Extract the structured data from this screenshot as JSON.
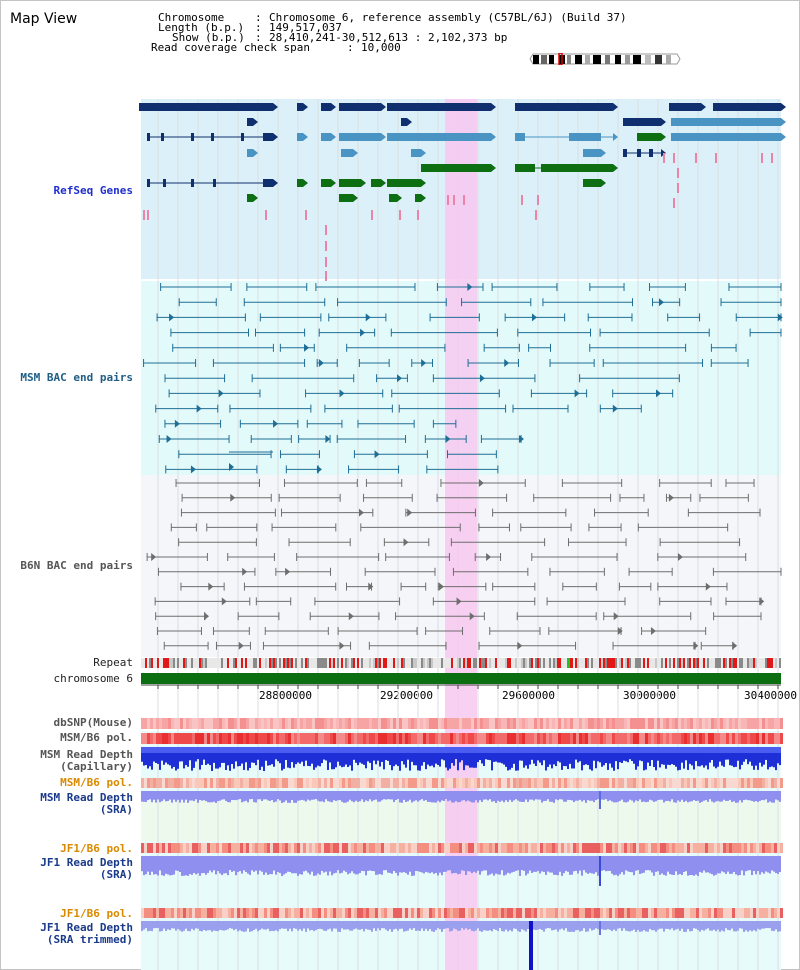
{
  "view": {
    "title": "Map View"
  },
  "header": {
    "chromosome_label": "Chromosome",
    "chromosome_value": "Chromosome 6, reference assembly (C57BL/6J) (Build 37)",
    "length_label": "Length (b.p.)",
    "length_value": "149,517,037",
    "show_label": "Show (b.p.)",
    "show_value": "28,410,241-30,512,613 : 2,102,373 bp",
    "coverage_label": "Read coverage check span",
    "coverage_value": "10,000"
  },
  "tracks": {
    "refseq": "RefSeq Genes",
    "msm_bac": "MSM BAC end pairs",
    "b6n_bac": "B6N BAC end pairs",
    "repeat": "Repeat",
    "chromosome": "chromosome 6",
    "dbsnp": "dbSNP(Mouse)",
    "msm_b6_pol_1": "MSM/B6 pol.",
    "msm_read_depth_cap": "MSM Read Depth\n(Capillary)",
    "msm_b6_pol_2": "MSM/B6 pol.",
    "msm_read_depth_sra": "MSM Read Depth\n(SRA)",
    "jf1_b6_pol_1": "JF1/B6 pol.",
    "jf1_read_depth_sra": "JF1 Read Depth\n(SRA)",
    "jf1_b6_pol_2": "JF1/B6 pol.",
    "jf1_read_depth_trim": "JF1 Read Depth\n(SRA trimmed)"
  },
  "axis": {
    "ticks": [
      "28800000",
      "29200000",
      "29600000",
      "30000000",
      "30400000"
    ]
  },
  "colors": {
    "refseq_bg": "#dcf0fa",
    "bac_bg": "#e3fafa",
    "highlight": "#f7c8f0",
    "gene_dark": "#0f2f6e",
    "gene_mid": "#4a94c4",
    "gene_green": "#0d6e12",
    "chrom_green": "#0b6e10",
    "depth_blue": "#1f2fd8",
    "depth_lav": "#8f8ff0"
  }
}
